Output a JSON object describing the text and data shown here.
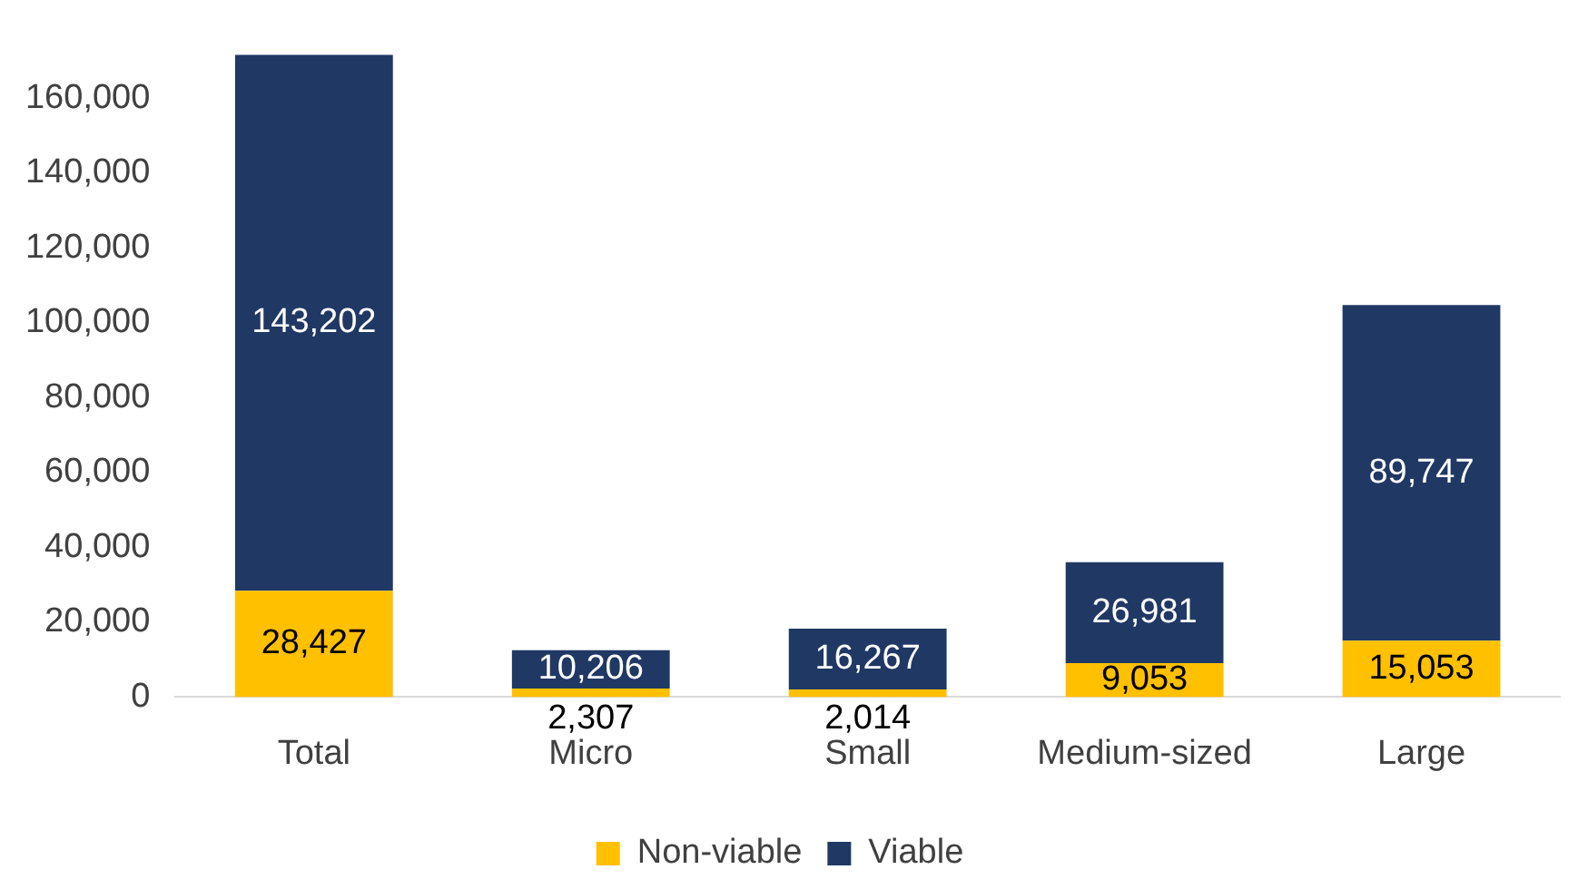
{
  "chart_data": {
    "type": "bar",
    "stacked": true,
    "categories": [
      "Total",
      "Micro",
      "Small",
      "Medium-sized",
      "Large"
    ],
    "series": [
      {
        "name": "Non-viable",
        "color": "#ffc000",
        "values": [
          28427,
          2307,
          2014,
          9053,
          15053
        ],
        "value_labels": [
          "28,427",
          "2,307",
          "2,014",
          "9,053",
          "15,053"
        ]
      },
      {
        "name": "Viable",
        "color": "#203864",
        "values": [
          143202,
          10206,
          16267,
          26981,
          89747
        ],
        "value_labels": [
          "143,202",
          "10,206",
          "16,267",
          "26,981",
          "89,747"
        ]
      }
    ],
    "ylim": [
      0,
      174000
    ],
    "yticks": [
      {
        "value": 0,
        "label": "0"
      },
      {
        "value": 20000,
        "label": "20,000"
      },
      {
        "value": 40000,
        "label": "40,000"
      },
      {
        "value": 60000,
        "label": "60,000"
      },
      {
        "value": 80000,
        "label": "80,000"
      },
      {
        "value": 100000,
        "label": "100,000"
      },
      {
        "value": 120000,
        "label": "120,000"
      },
      {
        "value": 140000,
        "label": "140,000"
      },
      {
        "value": 160000,
        "label": "160,000"
      }
    ],
    "grid": false,
    "legend": "bottom"
  }
}
